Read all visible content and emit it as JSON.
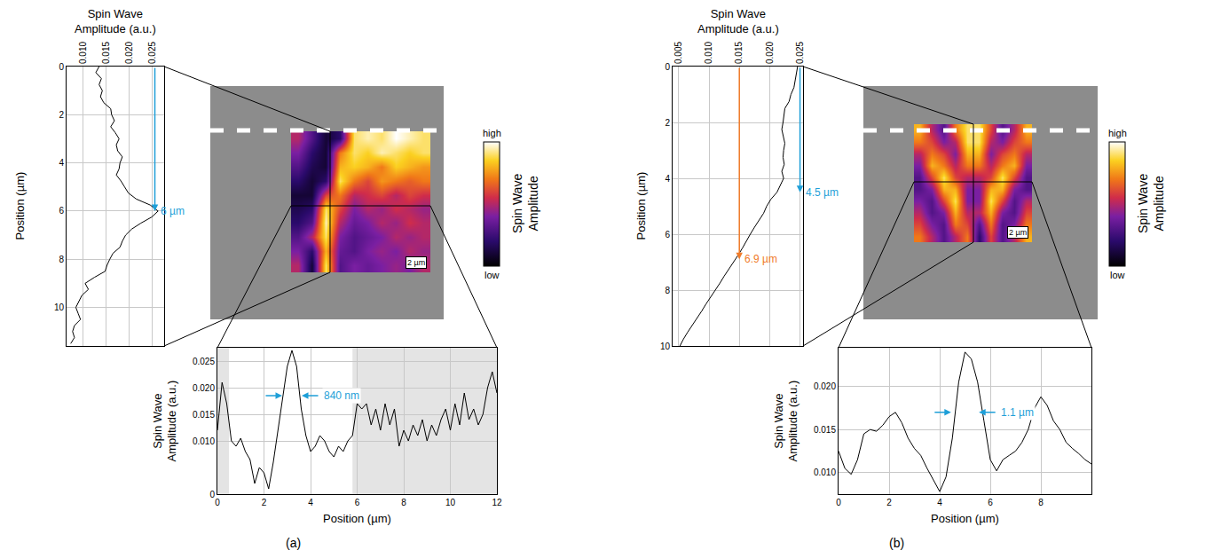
{
  "panel_labels": [
    "(a)",
    "(b)"
  ],
  "chart_data": [
    {
      "type": "line",
      "x_label": "Spin Wave Amplitude (a.u.)",
      "y_label": "Position (µm)",
      "color": "#000000",
      "grid": true,
      "xlim": [
        0.0065,
        0.0275
      ],
      "xticks": [
        {
          "value": 0.01,
          "label": "0.010"
        },
        0.015,
        {
          "value": 0.02,
          "label": "0.020"
        },
        0.025
      ],
      "ylim": [
        11.6,
        0
      ],
      "yticks": [
        0,
        2,
        4,
        6,
        8,
        10
      ],
      "y": [
        0,
        0.25,
        0.5,
        0.75,
        1,
        1.25,
        1.5,
        1.75,
        2,
        2.25,
        2.5,
        2.75,
        3,
        3.25,
        3.5,
        3.75,
        4,
        4.25,
        4.5,
        4.75,
        5,
        5.25,
        5.5,
        5.75,
        6,
        6.25,
        6.5,
        6.75,
        7,
        7.25,
        7.5,
        7.75,
        8,
        8.25,
        8.5,
        8.75,
        9,
        9.25,
        9.5,
        9.75,
        10,
        10.25,
        10.5,
        10.75,
        11,
        11.25,
        11.5
      ],
      "values": [
        0.0135,
        0.0128,
        0.014,
        0.0135,
        0.0142,
        0.0138,
        0.0145,
        0.016,
        0.0162,
        0.0168,
        0.016,
        0.017,
        0.0178,
        0.0172,
        0.0175,
        0.0185,
        0.018,
        0.0178,
        0.0172,
        0.0182,
        0.019,
        0.0198,
        0.0215,
        0.0245,
        0.0262,
        0.0248,
        0.0225,
        0.0205,
        0.0192,
        0.0185,
        0.018,
        0.0165,
        0.0158,
        0.0152,
        0.0148,
        0.0125,
        0.0105,
        0.0112,
        0.0098,
        0.0092,
        0.0085,
        0.009,
        0.0095,
        0.0082,
        0.0078,
        0.0082,
        0.0074
      ],
      "annotations": [
        {
          "text": "6 µm",
          "x": 0.0255,
          "y_from": 0,
          "y_to": 6,
          "color": "#1e9fd8"
        }
      ]
    },
    {
      "type": "heatmap",
      "cells": [
        [
          0.5,
          0.3,
          0.1,
          0.2,
          0.9,
          0.95,
          0.9,
          1.0,
          0.95,
          0.9
        ],
        [
          0.4,
          0.2,
          0.1,
          0.7,
          0.9,
          0.85,
          0.95,
          0.9,
          0.85,
          0.9
        ],
        [
          0.3,
          0.15,
          0.1,
          0.8,
          0.85,
          0.8,
          0.7,
          0.85,
          0.8,
          0.75
        ],
        [
          0.2,
          0.1,
          0.2,
          0.9,
          0.7,
          0.6,
          0.75,
          0.7,
          0.65,
          0.7
        ],
        [
          0.1,
          0.1,
          0.6,
          0.7,
          0.5,
          0.55,
          0.6,
          0.5,
          0.6,
          0.55
        ],
        [
          0.15,
          0.2,
          0.9,
          0.6,
          0.4,
          0.5,
          0.45,
          0.55,
          0.5,
          0.45
        ],
        [
          0.2,
          0.3,
          0.95,
          0.5,
          0.35,
          0.4,
          0.5,
          0.45,
          0.55,
          0.5
        ],
        [
          0.3,
          0.5,
          0.9,
          0.4,
          0.3,
          0.35,
          0.4,
          0.5,
          0.45,
          0.5
        ],
        [
          0.4,
          0.2,
          0.8,
          0.35,
          0.3,
          0.4,
          0.45,
          0.4,
          0.5,
          0.45
        ],
        [
          0.5,
          0.1,
          0.9,
          0.3,
          0.4,
          0.35,
          0.4,
          0.45,
          0.4,
          0.5
        ]
      ],
      "colorbar": {
        "title": "Spin Wave Amplitude",
        "range": [
          0,
          1
        ],
        "ticks": [
          {
            "value": 0,
            "label": "low"
          },
          {
            "value": 1,
            "label": "high"
          }
        ]
      },
      "scale_bar_label": "2 µm"
    },
    {
      "type": "line",
      "x_label": "Position (µm)",
      "y_label": "Spin Wave Amplitude (a.u.)",
      "color": "#000000",
      "grid": true,
      "xlim": [
        0,
        12
      ],
      "xticks": [
        0,
        2,
        4,
        6,
        8,
        10,
        12
      ],
      "ylim": [
        0,
        0.0275
      ],
      "yticks": [
        0,
        {
          "value": 0.01,
          "label": "0.010"
        },
        0.015,
        {
          "value": 0.02,
          "label": "0.020"
        },
        0.025
      ],
      "shaded_regions": [
        [
          0,
          0.5
        ],
        [
          5.8,
          12
        ]
      ],
      "x": [
        0,
        0.2,
        0.4,
        0.6,
        0.8,
        1.0,
        1.2,
        1.4,
        1.6,
        1.8,
        2.0,
        2.2,
        2.4,
        2.6,
        2.8,
        3.0,
        3.2,
        3.4,
        3.6,
        3.8,
        4.0,
        4.2,
        4.4,
        4.6,
        4.8,
        5.0,
        5.2,
        5.4,
        5.6,
        5.8,
        6.0,
        6.2,
        6.4,
        6.6,
        6.8,
        7.0,
        7.2,
        7.4,
        7.6,
        7.8,
        8.0,
        8.2,
        8.4,
        8.6,
        8.8,
        9.0,
        9.2,
        9.4,
        9.6,
        9.8,
        10.0,
        10.2,
        10.4,
        10.6,
        10.8,
        11.0,
        11.2,
        11.4,
        11.6,
        11.8,
        12.0
      ],
      "values": [
        0.012,
        0.021,
        0.017,
        0.01,
        0.009,
        0.0105,
        0.008,
        0.0065,
        0.002,
        0.005,
        0.004,
        0.001,
        0.006,
        0.012,
        0.018,
        0.024,
        0.027,
        0.024,
        0.016,
        0.011,
        0.008,
        0.009,
        0.011,
        0.01,
        0.008,
        0.007,
        0.009,
        0.008,
        0.01,
        0.011,
        0.017,
        0.016,
        0.017,
        0.013,
        0.016,
        0.012,
        0.017,
        0.013,
        0.016,
        0.009,
        0.012,
        0.01,
        0.013,
        0.011,
        0.014,
        0.01,
        0.013,
        0.011,
        0.014,
        0.016,
        0.012,
        0.017,
        0.013,
        0.019,
        0.014,
        0.016,
        0.013,
        0.015,
        0.02,
        0.023,
        0.019
      ],
      "annotations": [
        {
          "text": "840 nm",
          "y": 0.0185,
          "x_left": 2.78,
          "x_right": 3.62,
          "color": "#1e9fd8"
        }
      ]
    },
    {
      "type": "line",
      "x_label": "Spin Wave Amplitude (a.u.)",
      "y_label": "Position (µm)",
      "color": "#000000",
      "grid": true,
      "xlim": [
        0.004,
        0.0255
      ],
      "xticks": [
        0.005,
        {
          "value": 0.01,
          "label": "0.010"
        },
        0.015,
        {
          "value": 0.02,
          "label": "0.020"
        },
        0.025
      ],
      "ylim": [
        10,
        0
      ],
      "yticks": [
        0,
        2,
        4,
        6,
        8,
        10
      ],
      "y": [
        0,
        0.25,
        0.5,
        0.75,
        1,
        1.25,
        1.5,
        1.75,
        2,
        2.25,
        2.5,
        2.75,
        3,
        3.25,
        3.5,
        3.75,
        4,
        4.25,
        4.5,
        4.75,
        5,
        5.25,
        5.5,
        5.75,
        6,
        6.25,
        6.5,
        6.75,
        7,
        7.25,
        7.5,
        7.75,
        8,
        8.25,
        8.5,
        8.75,
        9,
        9.25,
        9.5,
        9.75,
        10
      ],
      "values": [
        0.0246,
        0.0244,
        0.0242,
        0.024,
        0.0235,
        0.0232,
        0.0225,
        0.0224,
        0.0222,
        0.022,
        0.0222,
        0.0225,
        0.0223,
        0.0222,
        0.0224,
        0.022,
        0.0223,
        0.0218,
        0.0212,
        0.0202,
        0.0195,
        0.019,
        0.0182,
        0.0175,
        0.0168,
        0.0162,
        0.0155,
        0.0148,
        0.014,
        0.0132,
        0.0125,
        0.0118,
        0.011,
        0.0102,
        0.0095,
        0.0088,
        0.008,
        0.0072,
        0.0065,
        0.0058,
        0.0052
      ],
      "annotations": [
        {
          "text": "4.5 µm",
          "x": 0.025,
          "y_from": 0,
          "y_to": 4.5,
          "color": "#1e9fd8"
        },
        {
          "text": "6.9 µm",
          "x": 0.015,
          "y_from": 0,
          "y_to": 6.9,
          "color": "#f07b2a"
        }
      ]
    },
    {
      "type": "heatmap",
      "cells": [
        [
          0.8,
          0.5,
          0.3,
          0.7,
          0.9,
          0.9,
          0.6,
          0.3,
          0.5,
          0.8
        ],
        [
          0.7,
          0.6,
          0.4,
          0.5,
          0.9,
          0.9,
          0.5,
          0.4,
          0.6,
          0.7
        ],
        [
          0.5,
          0.7,
          0.6,
          0.4,
          0.8,
          0.8,
          0.4,
          0.6,
          0.7,
          0.5
        ],
        [
          0.4,
          0.8,
          0.7,
          0.5,
          0.7,
          0.7,
          0.5,
          0.7,
          0.8,
          0.4
        ],
        [
          0.3,
          0.6,
          0.9,
          0.6,
          0.5,
          0.5,
          0.6,
          0.9,
          0.6,
          0.3
        ],
        [
          0.3,
          0.4,
          0.8,
          0.8,
          0.4,
          0.4,
          0.8,
          0.8,
          0.4,
          0.3
        ],
        [
          0.4,
          0.3,
          0.6,
          0.9,
          0.4,
          0.4,
          0.9,
          0.6,
          0.3,
          0.5
        ],
        [
          0.5,
          0.3,
          0.4,
          0.8,
          0.5,
          0.5,
          0.8,
          0.4,
          0.3,
          0.6
        ],
        [
          0.6,
          0.4,
          0.3,
          0.7,
          0.6,
          0.3,
          0.7,
          0.3,
          0.4,
          0.7
        ],
        [
          0.7,
          0.5,
          0.3,
          0.5,
          0.7,
          0.2,
          0.6,
          0.3,
          0.5,
          0.8
        ]
      ],
      "colorbar": {
        "title": "Spin Wave Amplitude",
        "range": [
          0,
          1
        ],
        "ticks": [
          {
            "value": 0,
            "label": "low"
          },
          {
            "value": 1,
            "label": "high"
          }
        ]
      },
      "scale_bar_label": "2 µm"
    },
    {
      "type": "line",
      "x_label": "Position (µm)",
      "y_label": "Spin Wave Amplitude (a.u.)",
      "color": "#000000",
      "grid": true,
      "xlim": [
        0,
        10
      ],
      "xticks": [
        0,
        2,
        4,
        6,
        8
      ],
      "ylim": [
        0.0075,
        0.0245
      ],
      "yticks": [
        {
          "value": 0.01,
          "label": "0.010"
        },
        0.015,
        {
          "value": 0.02,
          "label": "0.020"
        }
      ],
      "x": [
        0,
        0.25,
        0.5,
        0.75,
        1,
        1.25,
        1.5,
        1.75,
        2,
        2.25,
        2.5,
        2.75,
        3,
        3.25,
        3.5,
        3.75,
        4,
        4.25,
        4.5,
        4.75,
        5,
        5.25,
        5.5,
        5.75,
        6,
        6.25,
        6.5,
        6.75,
        7,
        7.25,
        7.5,
        7.75,
        8,
        8.25,
        8.5,
        8.75,
        9,
        9.25,
        9.5,
        9.75,
        10
      ],
      "values": [
        0.0125,
        0.0105,
        0.0098,
        0.0115,
        0.0145,
        0.015,
        0.0148,
        0.0155,
        0.0165,
        0.017,
        0.0158,
        0.014,
        0.0128,
        0.012,
        0.0105,
        0.0092,
        0.0078,
        0.0095,
        0.014,
        0.0205,
        0.024,
        0.0232,
        0.0205,
        0.016,
        0.0115,
        0.0102,
        0.0115,
        0.012,
        0.0125,
        0.0135,
        0.015,
        0.0175,
        0.0188,
        0.0178,
        0.016,
        0.015,
        0.0135,
        0.0128,
        0.0122,
        0.0115,
        0.011
      ],
      "annotations": [
        {
          "text": "1.1 µm",
          "y": 0.017,
          "x_left": 4.45,
          "x_right": 5.55,
          "color": "#1e9fd8"
        }
      ]
    }
  ]
}
